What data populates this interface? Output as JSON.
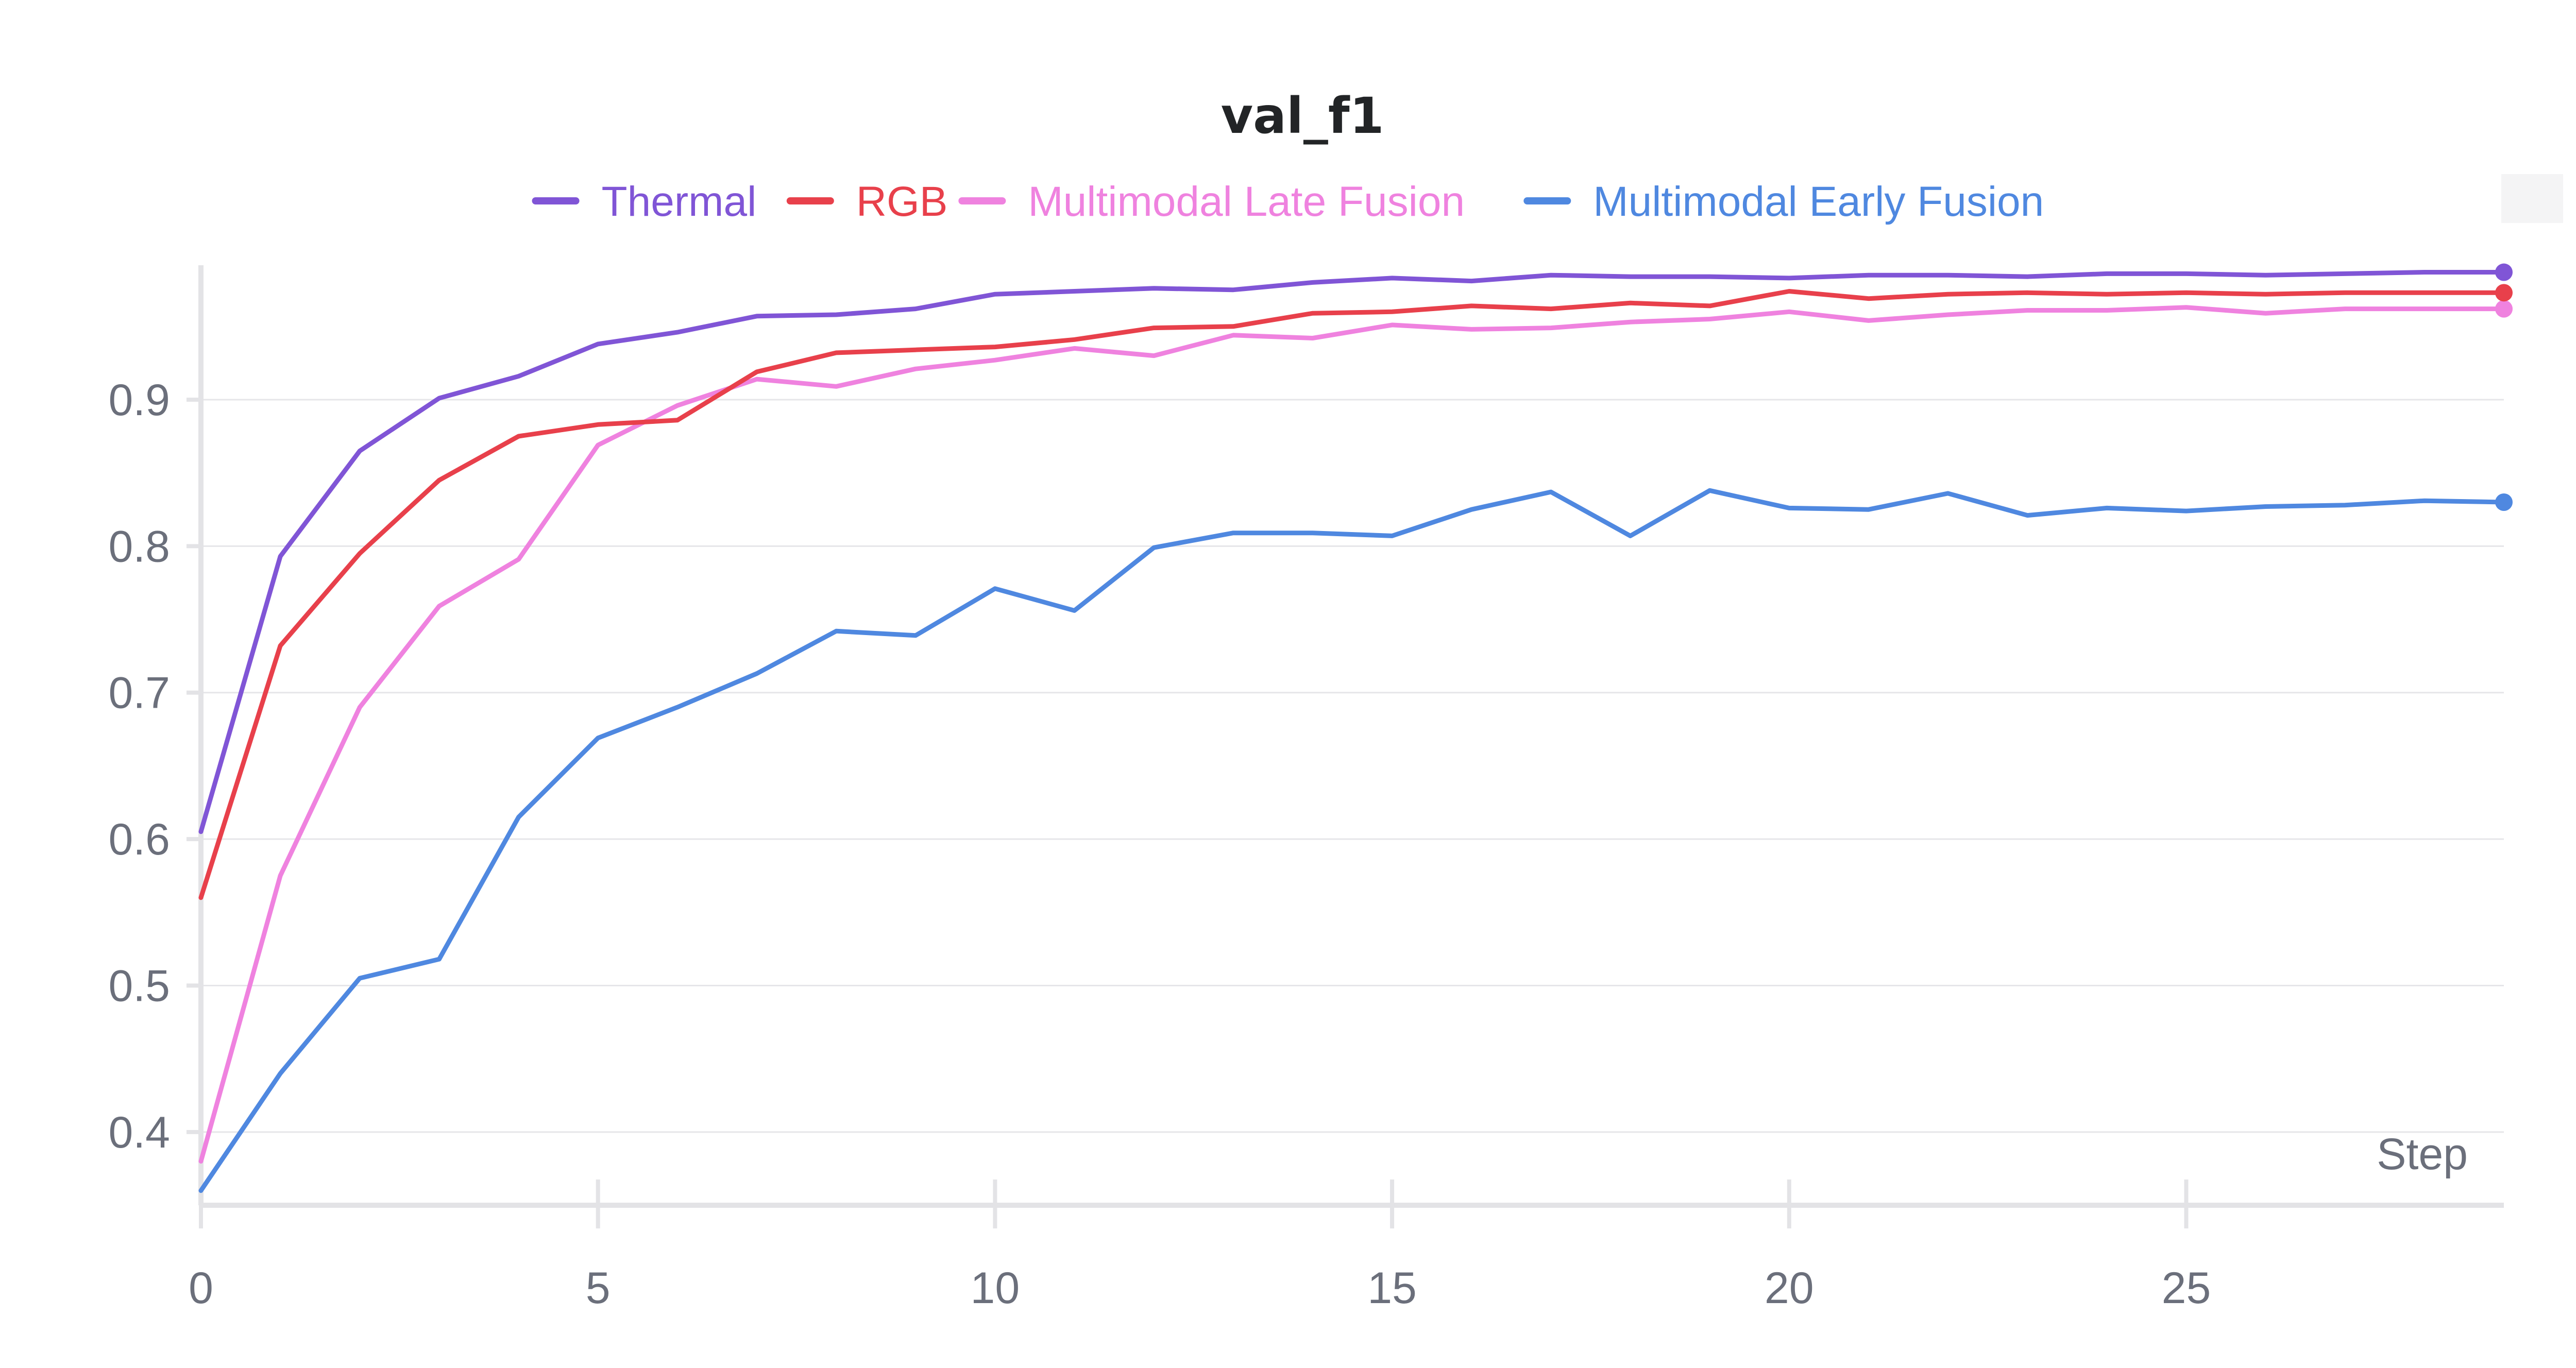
{
  "chart_data": {
    "type": "line",
    "title": "val_f1",
    "xlabel": "Step",
    "ylabel": "",
    "xlim": [
      0,
      29
    ],
    "ylim": [
      0.35,
      0.99
    ],
    "xticks": [
      0,
      5,
      10,
      15,
      20,
      25
    ],
    "yticks": [
      0.4,
      0.5,
      0.6,
      0.7,
      0.8,
      0.9
    ],
    "grid": true,
    "legend": "top-center",
    "x": [
      0,
      1,
      2,
      3,
      4,
      5,
      6,
      7,
      8,
      9,
      10,
      11,
      12,
      13,
      14,
      15,
      16,
      17,
      18,
      19,
      20,
      21,
      22,
      23,
      24,
      25,
      26,
      27,
      28,
      29
    ],
    "series": [
      {
        "name": "Thermal",
        "color": "#8055d6",
        "values": [
          0.605,
          0.793,
          0.865,
          0.901,
          0.916,
          0.938,
          0.946,
          0.957,
          0.958,
          0.962,
          0.972,
          0.974,
          0.976,
          0.975,
          0.98,
          0.983,
          0.981,
          0.985,
          0.984,
          0.984,
          0.983,
          0.985,
          0.985,
          0.984,
          0.986,
          0.986,
          0.985,
          0.986,
          0.987,
          0.987
        ]
      },
      {
        "name": "RGB",
        "color": "#e8404b",
        "values": [
          0.56,
          0.732,
          0.795,
          0.845,
          0.875,
          0.883,
          0.886,
          0.919,
          0.932,
          0.934,
          0.936,
          0.941,
          0.949,
          0.95,
          0.959,
          0.96,
          0.964,
          0.962,
          0.966,
          0.964,
          0.974,
          0.969,
          0.972,
          0.973,
          0.972,
          0.973,
          0.972,
          0.973,
          0.973,
          0.973
        ]
      },
      {
        "name": "Multimodal Late Fusion",
        "color": "#ef82df",
        "values": [
          0.38,
          0.575,
          0.69,
          0.759,
          0.791,
          0.869,
          0.896,
          0.914,
          0.909,
          0.921,
          0.927,
          0.935,
          0.93,
          0.944,
          0.942,
          0.951,
          0.948,
          0.949,
          0.953,
          0.955,
          0.96,
          0.954,
          0.958,
          0.961,
          0.961,
          0.963,
          0.959,
          0.962,
          0.962,
          0.962
        ]
      },
      {
        "name": "Multimodal Early Fusion",
        "color": "#4f88e0",
        "values": [
          0.36,
          0.44,
          0.505,
          0.518,
          0.615,
          0.669,
          0.69,
          0.713,
          0.742,
          0.739,
          0.771,
          0.756,
          0.799,
          0.809,
          0.809,
          0.807,
          0.825,
          0.837,
          0.807,
          0.838,
          0.826,
          0.825,
          0.836,
          0.821,
          0.826,
          0.824,
          0.827,
          0.828,
          0.831,
          0.83
        ]
      }
    ]
  }
}
